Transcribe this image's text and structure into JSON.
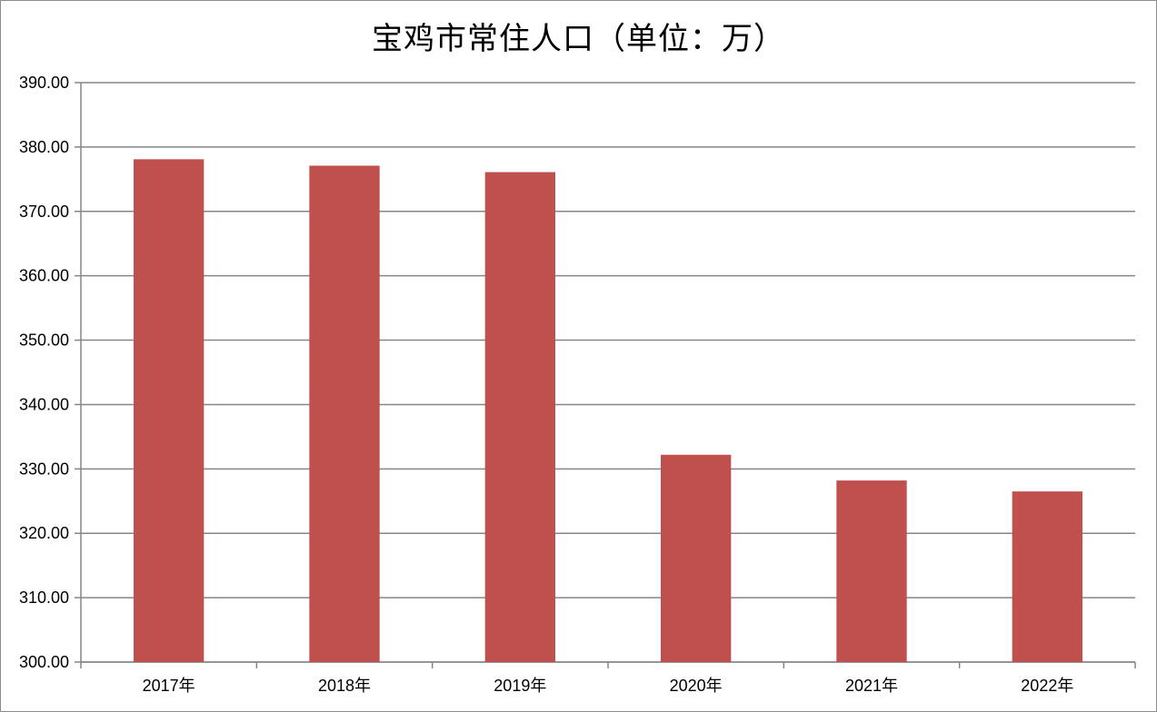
{
  "chart_data": {
    "type": "bar",
    "title": "宝鸡市常住人口（单位：万）",
    "categories": [
      "2017年",
      "2018年",
      "2019年",
      "2020年",
      "2021年",
      "2022年"
    ],
    "series": [
      {
        "values": [
          378.1,
          377.1,
          376.1,
          332.2,
          328.2,
          326.5
        ]
      }
    ],
    "ylim": [
      300,
      390
    ],
    "yticks": [
      "300.00",
      "310.00",
      "320.00",
      "330.00",
      "340.00",
      "350.00",
      "360.00",
      "370.00",
      "380.00",
      "390.00"
    ],
    "xlabel": "",
    "ylabel": "",
    "grid": true,
    "legend": "none",
    "bar_color": "#c0504d",
    "grid_color": "#868686"
  }
}
